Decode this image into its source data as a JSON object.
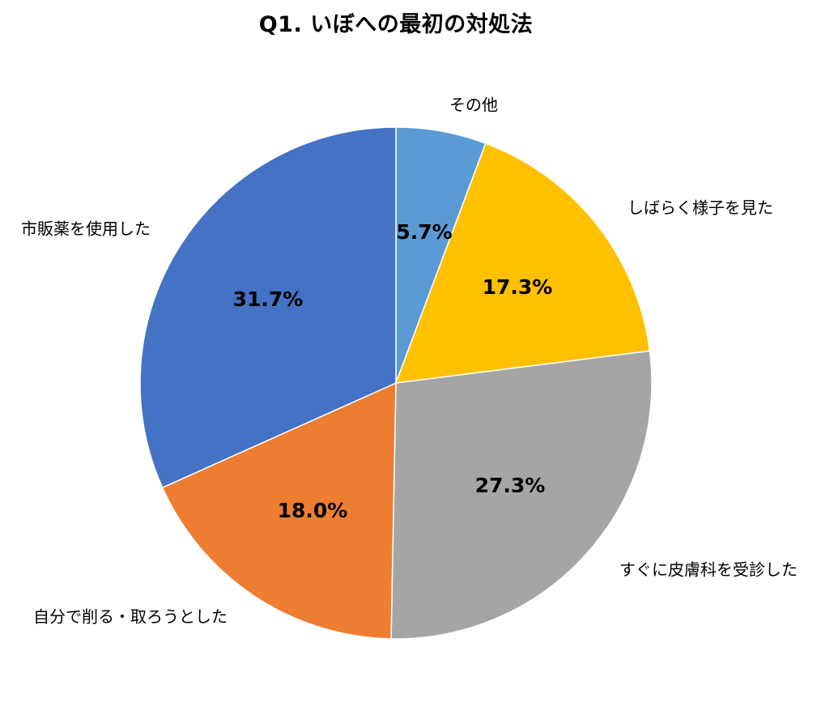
{
  "chart_data": {
    "type": "pie",
    "title": "Q1. いぼへの最初の対処法",
    "categories": [
      "その他",
      "しばらく様子を見た",
      "すぐに皮膚科を受診した",
      "自分で削る・取ろうとした",
      "市販薬を使用した"
    ],
    "values": [
      5.7,
      17.3,
      27.3,
      18.0,
      31.7
    ],
    "value_labels": [
      "5.7%",
      "17.3%",
      "27.3%",
      "18.0%",
      "31.7%"
    ],
    "colors": [
      "#5B9BD5",
      "#FFC000",
      "#A5A5A5",
      "#ED7D31",
      "#4472C4"
    ],
    "start_angle": "12 o'clock",
    "direction": "clockwise",
    "legend": "none (category labels outside slices)"
  }
}
